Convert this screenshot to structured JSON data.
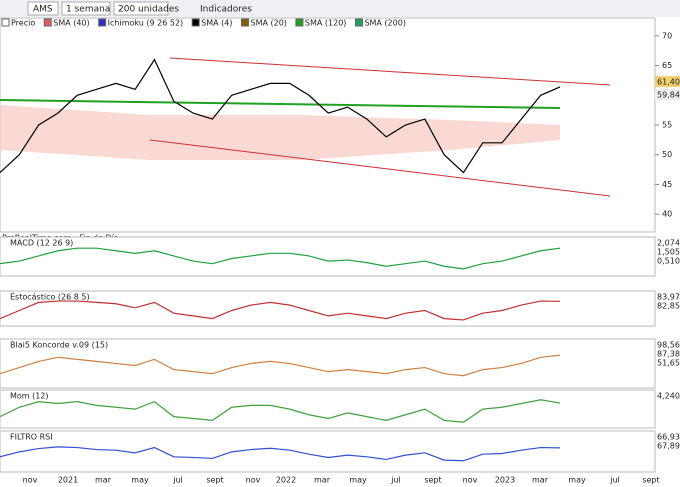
{
  "toolbar": {
    "symbol": "AMS",
    "period": "1 semana",
    "units": "200 unidades",
    "indicators": "Indicadores"
  },
  "legend": [
    {
      "name": "Precio",
      "color": "#ffffff"
    },
    {
      "name": "SMA (40)",
      "color": "#e06060"
    },
    {
      "name": "Ichimoku (9 26 52)",
      "color": "#3030c0"
    },
    {
      "name": "SMA (4)",
      "color": "#000000"
    },
    {
      "name": "SMA (20)",
      "color": "#806000"
    },
    {
      "name": "SMA (120)",
      "color": "#20a020"
    },
    {
      "name": "SMA (200)",
      "color": "#20a060"
    }
  ],
  "source": "ProRealTime.com - Fin de Día",
  "chart_data": {
    "type": "line",
    "values": [
      47,
      50,
      55,
      57,
      60,
      61,
      62,
      61,
      66,
      59,
      57,
      56,
      60,
      61,
      62,
      62,
      60,
      57,
      58,
      56,
      53,
      55,
      56,
      50,
      47,
      52,
      52,
      56,
      60,
      61.4
    ],
    "color": "#000000",
    "ylim": [
      37,
      73
    ],
    "yticks": [
      40,
      45,
      50,
      55,
      60,
      65,
      70
    ],
    "price_tags": [
      "61,40",
      "59,84"
    ],
    "x_labels": [
      "nov",
      "2021",
      "mar",
      "may",
      "jul",
      "sept",
      "nov",
      "2022",
      "mar",
      "may",
      "jul",
      "sept",
      "nov",
      "2023",
      "mar",
      "may",
      "jul",
      "sept"
    ]
  },
  "panels": [
    {
      "name": "MACD (12 26 9)",
      "tags": [
        "2,074",
        "1,505",
        "0,510"
      ],
      "color": "#20a040",
      "ylim": [
        -3,
        3
      ],
      "values": [
        -1,
        -0.5,
        0.5,
        1.5,
        2,
        2,
        1.5,
        1,
        1.5,
        0.5,
        -0.5,
        -1,
        0,
        0.5,
        1,
        1,
        0.5,
        -0.5,
        -0.3,
        -0.8,
        -1.5,
        -1,
        -0.5,
        -1.5,
        -2,
        -1,
        -0.5,
        0.5,
        1.5,
        2
      ]
    },
    {
      "name": "Estocástico (26 8 5)",
      "tags": [
        "83,97",
        "82,85"
      ],
      "color": "#c03030",
      "ylim": [
        0,
        100
      ],
      "values": [
        20,
        50,
        80,
        85,
        85,
        80,
        75,
        60,
        80,
        40,
        30,
        20,
        50,
        70,
        80,
        70,
        50,
        30,
        40,
        30,
        20,
        40,
        50,
        20,
        15,
        40,
        50,
        70,
        85,
        84
      ]
    },
    {
      "name": "Blai5 Koncorde v.09 (15)",
      "tags": [
        "98,56",
        "87,38",
        "51,65"
      ],
      "color": "#d08040",
      "ylim": [
        0,
        100
      ],
      "values": [
        30,
        45,
        60,
        70,
        65,
        60,
        55,
        50,
        65,
        40,
        35,
        30,
        45,
        55,
        60,
        55,
        45,
        35,
        40,
        35,
        30,
        40,
        45,
        30,
        25,
        40,
        45,
        55,
        70,
        75
      ]
    },
    {
      "name": "Mom (12)",
      "tags": [
        "4,240"
      ],
      "color": "#40a040",
      "ylim": [
        -8,
        8
      ],
      "values": [
        -3,
        2,
        5,
        4,
        5,
        3,
        2,
        1,
        5,
        -3,
        -4,
        -5,
        2,
        3,
        3,
        1,
        -2,
        -4,
        -1,
        -3,
        -5,
        -2,
        1,
        -5,
        -6,
        1,
        2,
        4,
        6,
        4.24
      ]
    },
    {
      "name": "FILTRO RSI",
      "tags": [
        "66,93",
        "67,89"
      ],
      "color": "#3050d0",
      "ylim": [
        0,
        100
      ],
      "values": [
        40,
        55,
        65,
        70,
        68,
        62,
        60,
        52,
        68,
        40,
        38,
        35,
        55,
        62,
        66,
        60,
        48,
        38,
        45,
        40,
        32,
        45,
        52,
        30,
        28,
        48,
        50,
        60,
        68,
        67
      ]
    }
  ]
}
